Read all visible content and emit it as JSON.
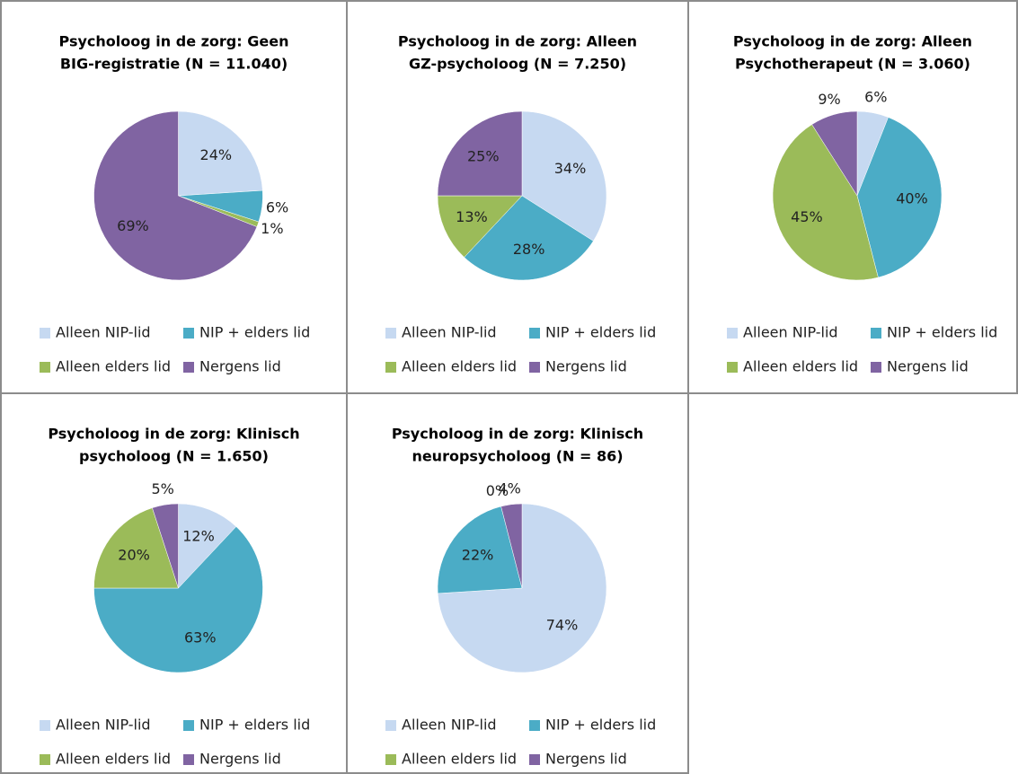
{
  "chart_data": [
    {
      "type": "pie",
      "title": [
        "Psycholoog in de zorg: Geen",
        "BIG-registratie (N = 11.040)"
      ],
      "categories": [
        "Alleen NIP-lid",
        "NIP + elders lid",
        "Alleen elders lid",
        "Nergens lid"
      ],
      "values": [
        24,
        6,
        1,
        69
      ],
      "value_labels": [
        "24%",
        "6%",
        "1%",
        "69%"
      ],
      "colors": [
        "#c6d9f1",
        "#4bacc6",
        "#9bbb59",
        "#8064a2"
      ]
    },
    {
      "type": "pie",
      "title": [
        "Psycholoog in de zorg: Alleen",
        "GZ-psycholoog (N = 7.250)"
      ],
      "categories": [
        "Alleen NIP-lid",
        "NIP + elders lid",
        "Alleen elders lid",
        "Nergens lid"
      ],
      "values": [
        34,
        28,
        13,
        25
      ],
      "value_labels": [
        "34%",
        "28%",
        "13%",
        "25%"
      ],
      "colors": [
        "#c6d9f1",
        "#4bacc6",
        "#9bbb59",
        "#8064a2"
      ]
    },
    {
      "type": "pie",
      "title": [
        "Psycholoog in de zorg: Alleen",
        "Psychotherapeut (N = 3.060)"
      ],
      "categories": [
        "Alleen NIP-lid",
        "NIP + elders lid",
        "Alleen elders lid",
        "Nergens lid"
      ],
      "values": [
        6,
        40,
        45,
        9
      ],
      "value_labels": [
        "6%",
        "40%",
        "45%",
        "9%"
      ],
      "colors": [
        "#c6d9f1",
        "#4bacc6",
        "#9bbb59",
        "#8064a2"
      ]
    },
    {
      "type": "pie",
      "title": [
        "Psycholoog in de zorg: Klinisch",
        "psycholoog (N = 1.650)"
      ],
      "categories": [
        "Alleen NIP-lid",
        "NIP + elders lid",
        "Alleen elders lid",
        "Nergens lid"
      ],
      "values": [
        12,
        63,
        20,
        5
      ],
      "value_labels": [
        "12%",
        "63%",
        "20%",
        "5%"
      ],
      "colors": [
        "#c6d9f1",
        "#4bacc6",
        "#9bbb59",
        "#8064a2"
      ]
    },
    {
      "type": "pie",
      "title": [
        "Psycholoog in de zorg: Klinisch",
        "neuropsycholoog (N = 86)"
      ],
      "categories": [
        "Alleen NIP-lid",
        "NIP + elders lid",
        "Alleen elders lid",
        "Nergens lid"
      ],
      "values": [
        74,
        22,
        0,
        4
      ],
      "value_labels": [
        "74%",
        "22%",
        "0%",
        "4%"
      ],
      "colors": [
        "#c6d9f1",
        "#4bacc6",
        "#9bbb59",
        "#8064a2"
      ]
    }
  ]
}
